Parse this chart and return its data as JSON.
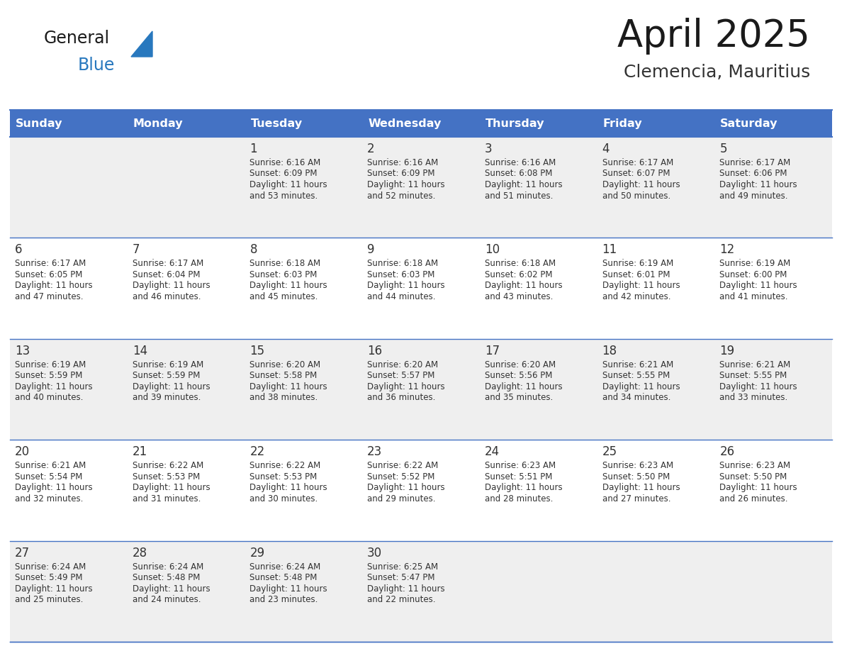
{
  "title": "April 2025",
  "subtitle": "Clemencia, Mauritius",
  "days_of_week": [
    "Sunday",
    "Monday",
    "Tuesday",
    "Wednesday",
    "Thursday",
    "Friday",
    "Saturday"
  ],
  "header_bg": "#4472C4",
  "header_text": "#FFFFFF",
  "row_bg_light": "#EFEFEF",
  "row_bg_white": "#FFFFFF",
  "cell_text_color": "#333333",
  "day_number_color": "#333333",
  "grid_line_color": "#4472C4",
  "title_color": "#1a1a1a",
  "subtitle_color": "#333333",
  "logo_general_color": "#1a1a1a",
  "logo_blue_color": "#2878BE",
  "logo_triangle_color": "#2878BE",
  "bg_color": "#FFFFFF",
  "calendar_data": [
    [
      {
        "day": "",
        "sunrise": "",
        "sunset": "",
        "daylight": ""
      },
      {
        "day": "",
        "sunrise": "",
        "sunset": "",
        "daylight": ""
      },
      {
        "day": "1",
        "sunrise": "6:16 AM",
        "sunset": "6:09 PM",
        "daylight": "11 hours and 53 minutes."
      },
      {
        "day": "2",
        "sunrise": "6:16 AM",
        "sunset": "6:09 PM",
        "daylight": "11 hours and 52 minutes."
      },
      {
        "day": "3",
        "sunrise": "6:16 AM",
        "sunset": "6:08 PM",
        "daylight": "11 hours and 51 minutes."
      },
      {
        "day": "4",
        "sunrise": "6:17 AM",
        "sunset": "6:07 PM",
        "daylight": "11 hours and 50 minutes."
      },
      {
        "day": "5",
        "sunrise": "6:17 AM",
        "sunset": "6:06 PM",
        "daylight": "11 hours and 49 minutes."
      }
    ],
    [
      {
        "day": "6",
        "sunrise": "6:17 AM",
        "sunset": "6:05 PM",
        "daylight": "11 hours and 47 minutes."
      },
      {
        "day": "7",
        "sunrise": "6:17 AM",
        "sunset": "6:04 PM",
        "daylight": "11 hours and 46 minutes."
      },
      {
        "day": "8",
        "sunrise": "6:18 AM",
        "sunset": "6:03 PM",
        "daylight": "11 hours and 45 minutes."
      },
      {
        "day": "9",
        "sunrise": "6:18 AM",
        "sunset": "6:03 PM",
        "daylight": "11 hours and 44 minutes."
      },
      {
        "day": "10",
        "sunrise": "6:18 AM",
        "sunset": "6:02 PM",
        "daylight": "11 hours and 43 minutes."
      },
      {
        "day": "11",
        "sunrise": "6:19 AM",
        "sunset": "6:01 PM",
        "daylight": "11 hours and 42 minutes."
      },
      {
        "day": "12",
        "sunrise": "6:19 AM",
        "sunset": "6:00 PM",
        "daylight": "11 hours and 41 minutes."
      }
    ],
    [
      {
        "day": "13",
        "sunrise": "6:19 AM",
        "sunset": "5:59 PM",
        "daylight": "11 hours and 40 minutes."
      },
      {
        "day": "14",
        "sunrise": "6:19 AM",
        "sunset": "5:59 PM",
        "daylight": "11 hours and 39 minutes."
      },
      {
        "day": "15",
        "sunrise": "6:20 AM",
        "sunset": "5:58 PM",
        "daylight": "11 hours and 38 minutes."
      },
      {
        "day": "16",
        "sunrise": "6:20 AM",
        "sunset": "5:57 PM",
        "daylight": "11 hours and 36 minutes."
      },
      {
        "day": "17",
        "sunrise": "6:20 AM",
        "sunset": "5:56 PM",
        "daylight": "11 hours and 35 minutes."
      },
      {
        "day": "18",
        "sunrise": "6:21 AM",
        "sunset": "5:55 PM",
        "daylight": "11 hours and 34 minutes."
      },
      {
        "day": "19",
        "sunrise": "6:21 AM",
        "sunset": "5:55 PM",
        "daylight": "11 hours and 33 minutes."
      }
    ],
    [
      {
        "day": "20",
        "sunrise": "6:21 AM",
        "sunset": "5:54 PM",
        "daylight": "11 hours and 32 minutes."
      },
      {
        "day": "21",
        "sunrise": "6:22 AM",
        "sunset": "5:53 PM",
        "daylight": "11 hours and 31 minutes."
      },
      {
        "day": "22",
        "sunrise": "6:22 AM",
        "sunset": "5:53 PM",
        "daylight": "11 hours and 30 minutes."
      },
      {
        "day": "23",
        "sunrise": "6:22 AM",
        "sunset": "5:52 PM",
        "daylight": "11 hours and 29 minutes."
      },
      {
        "day": "24",
        "sunrise": "6:23 AM",
        "sunset": "5:51 PM",
        "daylight": "11 hours and 28 minutes."
      },
      {
        "day": "25",
        "sunrise": "6:23 AM",
        "sunset": "5:50 PM",
        "daylight": "11 hours and 27 minutes."
      },
      {
        "day": "26",
        "sunrise": "6:23 AM",
        "sunset": "5:50 PM",
        "daylight": "11 hours and 26 minutes."
      }
    ],
    [
      {
        "day": "27",
        "sunrise": "6:24 AM",
        "sunset": "5:49 PM",
        "daylight": "11 hours and 25 minutes."
      },
      {
        "day": "28",
        "sunrise": "6:24 AM",
        "sunset": "5:48 PM",
        "daylight": "11 hours and 24 minutes."
      },
      {
        "day": "29",
        "sunrise": "6:24 AM",
        "sunset": "5:48 PM",
        "daylight": "11 hours and 23 minutes."
      },
      {
        "day": "30",
        "sunrise": "6:25 AM",
        "sunset": "5:47 PM",
        "daylight": "11 hours and 22 minutes."
      },
      {
        "day": "",
        "sunrise": "",
        "sunset": "",
        "daylight": ""
      },
      {
        "day": "",
        "sunrise": "",
        "sunset": "",
        "daylight": ""
      },
      {
        "day": "",
        "sunrise": "",
        "sunset": "",
        "daylight": ""
      }
    ]
  ],
  "row_colors": [
    "#EFEFEF",
    "#FFFFFF",
    "#EFEFEF",
    "#FFFFFF",
    "#EFEFEF"
  ]
}
